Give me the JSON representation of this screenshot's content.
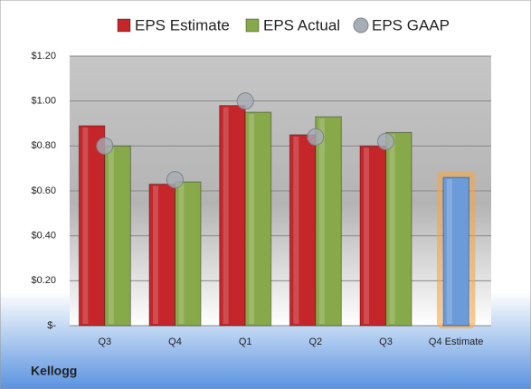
{
  "chart_data": {
    "type": "bar",
    "categories": [
      "Q3",
      "Q4",
      "Q1",
      "Q2",
      "Q3",
      "Q4 Estimate"
    ],
    "series": [
      {
        "name": "EPS Estimate",
        "color": "#c4262a",
        "values": [
          0.89,
          0.63,
          0.98,
          0.85,
          0.8,
          0.66
        ],
        "point_colors": [
          null,
          null,
          null,
          null,
          null,
          "#6b9bd8"
        ],
        "point_glow": [
          null,
          null,
          null,
          null,
          null,
          "#f5a64a"
        ]
      },
      {
        "name": "EPS Actual",
        "color": "#88a94a",
        "values": [
          0.8,
          0.64,
          0.95,
          0.93,
          0.86,
          null
        ]
      },
      {
        "name": "EPS GAAP",
        "type": "scatter",
        "color": "#a6adb5",
        "values": [
          0.8,
          0.65,
          1.0,
          0.84,
          0.82,
          null
        ]
      }
    ],
    "ylim": [
      0,
      1.2
    ],
    "yticks": [
      {
        "value": 0,
        "label": "$-"
      },
      {
        "value": 0.2,
        "label": "$0.20"
      },
      {
        "value": 0.4,
        "label": "$0.40"
      },
      {
        "value": 0.6,
        "label": "$0.60"
      },
      {
        "value": 0.8,
        "label": "$0.80"
      },
      {
        "value": 1.0,
        "label": "$1.00"
      },
      {
        "value": 1.2,
        "label": "$1.20"
      }
    ],
    "grid": true,
    "legend": "top",
    "footer": "Kellogg"
  }
}
